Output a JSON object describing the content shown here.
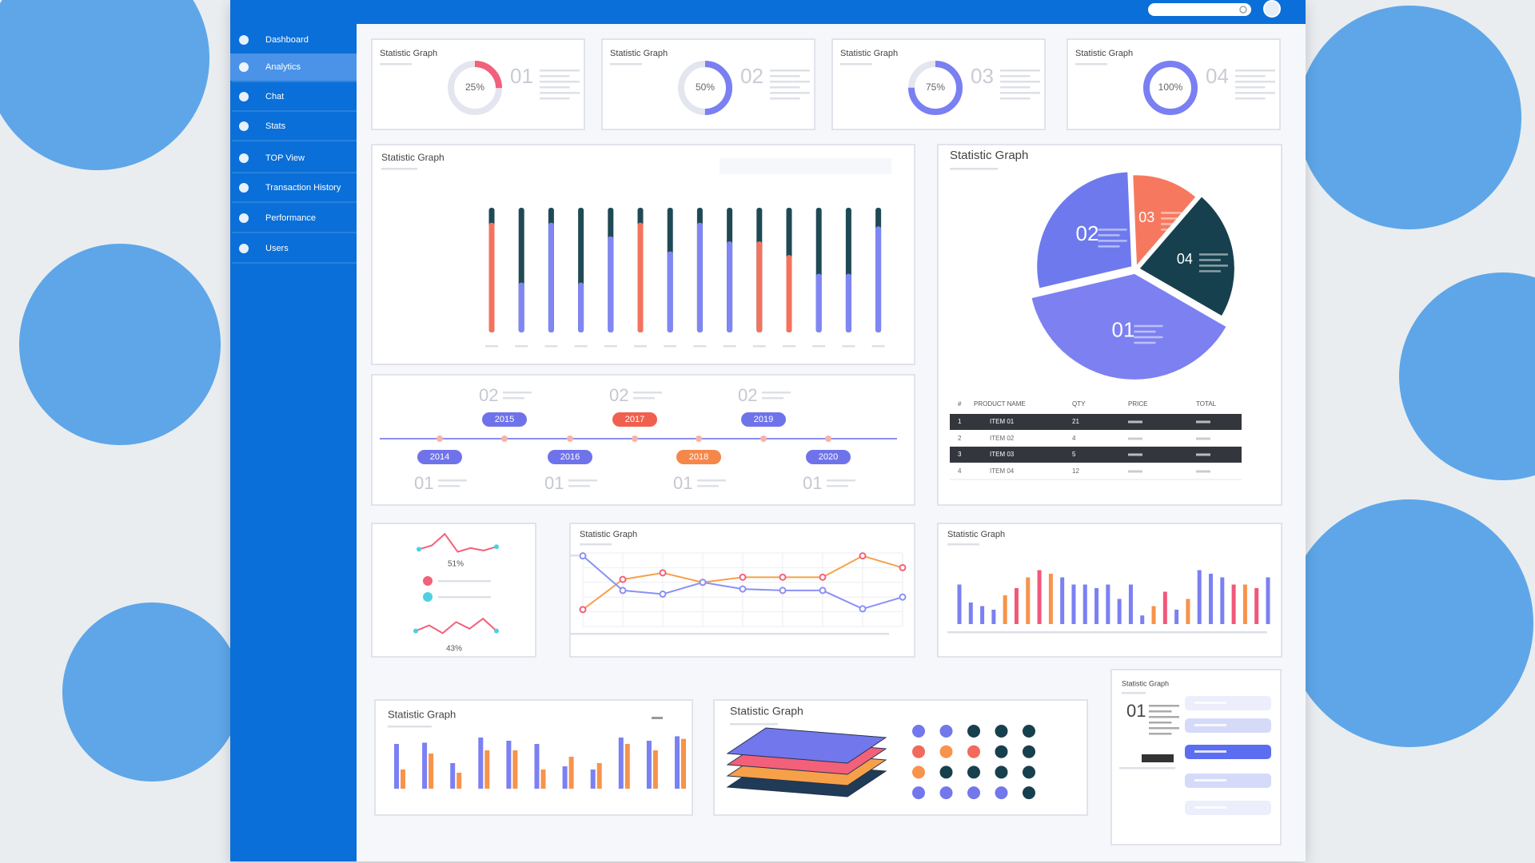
{
  "sidebar": {
    "items": [
      "Dashboard",
      "Analytics",
      "Chat",
      "Stats",
      "TOP View",
      "Transaction History",
      "Performance",
      "Users"
    ],
    "active": 1
  },
  "donut_cards": [
    {
      "title": "Statistic Graph",
      "percent": {
        "value": 25,
        "label": "25%"
      },
      "number": "01",
      "color": "#f2607a"
    },
    {
      "title": "Statistic Graph",
      "percent": {
        "value": 50,
        "label": "50%"
      },
      "number": "02",
      "color": "#7a7ff2"
    },
    {
      "title": "Statistic Graph",
      "percent": {
        "value": 75,
        "label": "75%"
      },
      "number": "03",
      "color": "#7a7ff2"
    },
    {
      "title": "Statistic Graph",
      "percent": {
        "value": 100,
        "label": "100%"
      },
      "number": "04",
      "color": "#7a7ff2"
    }
  ],
  "bar_panel": {
    "title": "Statistic Graph",
    "ylim": [
      0,
      100
    ],
    "values": [
      88,
      40,
      88,
      40,
      77,
      88,
      65,
      88,
      73,
      73,
      62,
      47,
      47,
      85
    ],
    "colors": [
      "#f4735f",
      "#8086f3",
      "#8086f3",
      "#8086f3",
      "#8086f3",
      "#f4735f",
      "#8086f3",
      "#8086f3",
      "#8086f3",
      "#f4735f",
      "#f4735f",
      "#8086f3",
      "#8086f3",
      "#8086f3"
    ]
  },
  "pie_panel": {
    "title": "Statistic Graph",
    "slices": [
      {
        "label": "01",
        "value": 38,
        "color": "#7d80f0"
      },
      {
        "label": "02",
        "value": 28,
        "color": "#6e79ee"
      },
      {
        "label": "03",
        "value": 12,
        "color": "#f6795f"
      },
      {
        "label": "04",
        "value": 22,
        "color": "#17404e"
      }
    ],
    "table": {
      "header": [
        "#",
        "PRODUCT NAME",
        "QTY",
        "PRICE",
        "TOTAL"
      ],
      "rows": [
        [
          "1",
          "ITEM 01",
          "21"
        ],
        [
          "2",
          "ITEM 02",
          "4"
        ],
        [
          "3",
          "ITEM 03",
          "5"
        ],
        [
          "4",
          "ITEM 04",
          "12"
        ]
      ]
    }
  },
  "timeline": {
    "events": [
      {
        "year": "2014",
        "number": "01",
        "color": "#6f73ea"
      },
      {
        "year": "2015",
        "number": "02",
        "color": "#6f73ea"
      },
      {
        "year": "2016",
        "number": "01",
        "color": "#6f73ea"
      },
      {
        "year": "2017",
        "number": "02",
        "color": "#f0604f"
      },
      {
        "year": "2018",
        "number": "01",
        "color": "#f5874a"
      },
      {
        "year": "2019",
        "number": "02",
        "color": "#6f73ea"
      },
      {
        "year": "2020",
        "number": "01",
        "color": "#6f73ea"
      }
    ]
  },
  "sparkline_panel": {
    "top_label": "51%",
    "top_values": [
      30,
      45,
      90,
      20,
      35,
      25,
      40
    ],
    "top_color": "#f2607a",
    "bottom_label": "43%",
    "bottom_values": [
      30,
      55,
      20,
      70,
      40,
      85,
      30
    ],
    "bottom_color": "#f2607a",
    "legend_colors": [
      "#f2607a",
      "#4fd0e0"
    ]
  },
  "line_panel": {
    "title": "Statistic Graph",
    "ylim": [
      0,
      100
    ],
    "series": [
      {
        "color": "#f7a04a",
        "values": [
          23,
          64,
          73,
          60,
          67,
          67,
          67,
          96,
          80
        ]
      },
      {
        "color": "#8b90f5",
        "values": [
          96,
          49,
          44,
          60,
          51,
          49,
          49,
          24,
          40
        ]
      }
    ]
  },
  "column_panel": {
    "title": "Statistic Graph",
    "ylim": [
      0,
      100
    ],
    "values": [
      55,
      30,
      25,
      20,
      40,
      50,
      65,
      75,
      70,
      65,
      55,
      55,
      50,
      55,
      35,
      55,
      12,
      25,
      45,
      20,
      35,
      75,
      70,
      65,
      55,
      55,
      50,
      65
    ],
    "colors": [
      "#7b80f2",
      "#7b80f2",
      "#7b80f2",
      "#7b80f2",
      "#f7934c",
      "#f2577a",
      "#f7934c",
      "#f2577a",
      "#f7934c",
      "#7b80f2",
      "#7b80f2",
      "#7b80f2",
      "#7b80f2",
      "#7b80f2",
      "#7b80f2",
      "#7b80f2",
      "#7b80f2",
      "#f7934c",
      "#f2577a",
      "#7b80f2",
      "#f7934c",
      "#7b80f2",
      "#7b80f2",
      "#7b80f2",
      "#f2577a",
      "#f7934c",
      "#f2577a",
      "#7b80f2"
    ]
  },
  "bottom_bars": {
    "title": "Statistic Graph",
    "ylim": [
      0,
      100
    ],
    "series": [
      {
        "color": "#7b80f2",
        "values": [
          70,
          72,
          40,
          80,
          75,
          70,
          35,
          30,
          80,
          75,
          82
        ]
      },
      {
        "color": "#f7934c",
        "values": [
          30,
          55,
          25,
          60,
          60,
          30,
          50,
          40,
          70,
          60,
          78
        ]
      }
    ]
  },
  "layers_panel": {
    "title": "Statistic Graph"
  },
  "list_panel": {
    "title": "Statistic Graph",
    "number": "01"
  }
}
